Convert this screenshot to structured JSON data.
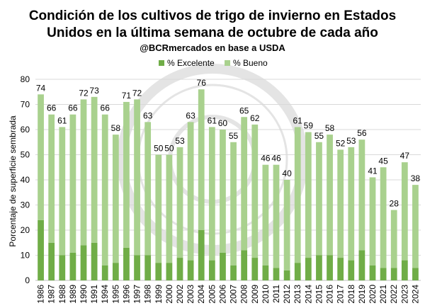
{
  "chart_data": {
    "type": "bar",
    "stacked": true,
    "title_lines": [
      "Condición de los cultivos de trigo de invierno en Estados",
      "Unidos en la última semana de octubre de cada año"
    ],
    "subtitle": "@BCRmercados en base a USDA",
    "ylabel": "Porcentaje de superficie sembrada",
    "xlabel": "",
    "ylim": [
      0,
      80
    ],
    "yticks": [
      0,
      10,
      20,
      30,
      40,
      50,
      60,
      70,
      80
    ],
    "grid": true,
    "legend_position": "top-center",
    "categories": [
      "1986",
      "1987",
      "1988",
      "1989",
      "1990",
      "1991",
      "1994",
      "1995",
      "1996",
      "1997",
      "1998",
      "1999",
      "2000",
      "2002",
      "2003",
      "2004",
      "2005",
      "2006",
      "2007",
      "2008",
      "2009",
      "2010",
      "2011",
      "2012",
      "2013",
      "2014",
      "2015",
      "2016",
      "2017",
      "2018",
      "2019",
      "2020",
      "2021",
      "2022",
      "2023",
      "2024"
    ],
    "series": [
      {
        "name": "% Excelente",
        "color": "#70ad47",
        "values": [
          24,
          15,
          10,
          11,
          14,
          15,
          6,
          7,
          13,
          10,
          10,
          7,
          7,
          9,
          8,
          20,
          8,
          11,
          6,
          12,
          9,
          6,
          5,
          4,
          7,
          9,
          10,
          10,
          9,
          8,
          12,
          6,
          5,
          5,
          8,
          5
        ]
      },
      {
        "name": "% Bueno",
        "color": "#a9d18e",
        "values": [
          50,
          51,
          51,
          55,
          58,
          58,
          60,
          51,
          58,
          62,
          53,
          43,
          43,
          44,
          55,
          56,
          53,
          49,
          49,
          53,
          53,
          40,
          41,
          36,
          54,
          50,
          45,
          48,
          43,
          45,
          44,
          35,
          40,
          23,
          39,
          33
        ]
      }
    ],
    "totals": [
      74,
      66,
      61,
      66,
      72,
      73,
      66,
      58,
      71,
      72,
      63,
      50,
      50,
      53,
      63,
      76,
      61,
      60,
      55,
      65,
      62,
      46,
      46,
      40,
      61,
      59,
      55,
      58,
      52,
      53,
      56,
      41,
      45,
      28,
      47,
      38
    ]
  }
}
